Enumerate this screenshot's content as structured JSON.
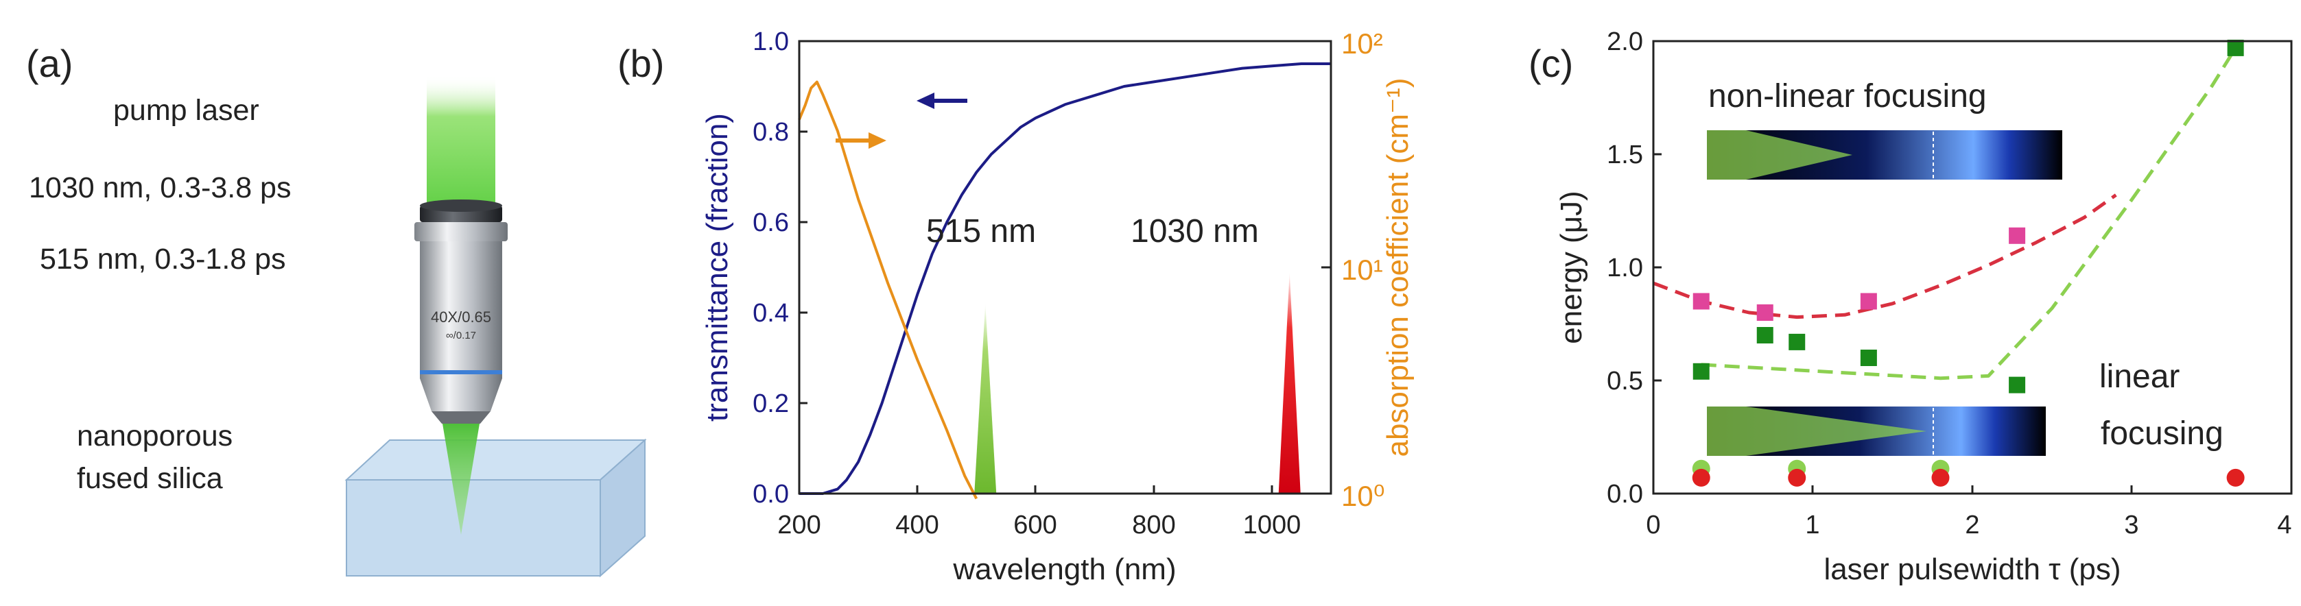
{
  "panel_a": {
    "label": "(a)",
    "text_lines": [
      "pump laser",
      "1030 nm, 0.3-3.8 ps",
      "515 nm, 0.3-1.8 ps"
    ],
    "sample_label": [
      "nanoporous",
      "fused silica"
    ],
    "objective_text": [
      "40X/0.65",
      "∞/0.17"
    ]
  },
  "chart_data": [
    {
      "type": "line",
      "panel": "(b)",
      "xlabel": "wavelength (nm)",
      "ylabel": "transmittance (fraction)",
      "ylabel_right": "absorption coefficient (cm⁻¹)",
      "xlim": [
        200,
        1100
      ],
      "ylim": [
        0,
        1.0
      ],
      "ylim_right_log": [
        1,
        100
      ],
      "xticks": [
        "200",
        "400",
        "600",
        "800",
        "1000"
      ],
      "yticks": [
        "0.0",
        "0.2",
        "0.4",
        "0.6",
        "0.8",
        "1.0"
      ],
      "yticks_right": [
        "10⁰",
        "10¹",
        "10²"
      ],
      "series": [
        {
          "name": "transmittance",
          "color": "#1c1c86",
          "axis": "left",
          "x": [
            200,
            240,
            265,
            280,
            300,
            320,
            340,
            360,
            380,
            400,
            425,
            450,
            475,
            500,
            525,
            550,
            575,
            600,
            650,
            700,
            750,
            800,
            850,
            900,
            950,
            1000,
            1050,
            1100
          ],
          "y": [
            0.0,
            0.0,
            0.01,
            0.03,
            0.07,
            0.13,
            0.2,
            0.28,
            0.36,
            0.44,
            0.53,
            0.6,
            0.66,
            0.71,
            0.75,
            0.78,
            0.81,
            0.83,
            0.86,
            0.88,
            0.9,
            0.91,
            0.92,
            0.93,
            0.94,
            0.945,
            0.95,
            0.95
          ]
        },
        {
          "name": "absorption coefficient",
          "color": "#e8901a",
          "axis": "right",
          "x": [
            200,
            210,
            220,
            230,
            240,
            250,
            265,
            300,
            350,
            400,
            450,
            480,
            500
          ],
          "y": [
            45,
            52,
            62,
            66,
            58,
            50,
            40,
            20,
            8.5,
            3.9,
            1.9,
            1.2,
            0.95
          ]
        }
      ],
      "markers": [
        {
          "label": "515 nm",
          "x": 515,
          "height": 0.42,
          "color": "#8cc63f"
        },
        {
          "label": "1030 nm",
          "x": 1030,
          "height": 0.49,
          "color": "#e0001b"
        }
      ]
    },
    {
      "type": "scatter",
      "panel": "(c)",
      "xlabel": "laser pulsewidth τ (ps)",
      "ylabel": "energy (μJ)",
      "xlim": [
        0,
        4
      ],
      "ylim": [
        0,
        2.0
      ],
      "xticks": [
        "0",
        "1",
        "2",
        "3",
        "4"
      ],
      "yticks": [
        "0.0",
        "0.5",
        "1.0",
        "1.5",
        "2.0"
      ],
      "annotations": [
        "non-linear focusing",
        "linear",
        "focusing"
      ],
      "series": [
        {
          "name": "non-linear threshold",
          "marker": "square",
          "color": "#e0449a",
          "x": [
            0.3,
            0.7,
            1.35,
            2.28
          ],
          "y": [
            0.85,
            0.8,
            0.85,
            1.14
          ]
        },
        {
          "name": "linear threshold",
          "marker": "square",
          "color": "#1a8a1a",
          "x": [
            0.3,
            0.7,
            0.9,
            1.35,
            2.28,
            3.65
          ],
          "y": [
            0.54,
            0.7,
            0.67,
            0.6,
            0.48,
            1.97
          ]
        },
        {
          "name": "515 nm points",
          "marker": "circle",
          "color": "#8cd050",
          "x": [
            0.3,
            0.9,
            1.8
          ],
          "y": [
            0.11,
            0.11,
            0.11
          ]
        },
        {
          "name": "1030 nm points",
          "marker": "circle",
          "color": "#e02020",
          "x": [
            0.3,
            0.9,
            1.8,
            3.65
          ],
          "y": [
            0.07,
            0.07,
            0.07,
            0.07
          ]
        }
      ],
      "fits": [
        {
          "name": "non-linear fit",
          "color": "#d83040",
          "x": [
            0,
            0.3,
            0.6,
            0.9,
            1.2,
            1.5,
            1.8,
            2.1,
            2.4,
            2.7,
            2.9
          ],
          "y": [
            0.93,
            0.85,
            0.8,
            0.78,
            0.79,
            0.84,
            0.92,
            1.01,
            1.11,
            1.22,
            1.32
          ]
        },
        {
          "name": "linear fit",
          "color": "#8cd050",
          "x": [
            0.3,
            0.8,
            1.3,
            1.8,
            2.1,
            2.5,
            3.0,
            3.5,
            3.65
          ],
          "y": [
            0.57,
            0.55,
            0.53,
            0.51,
            0.52,
            0.82,
            1.3,
            1.8,
            1.97
          ]
        }
      ]
    }
  ]
}
